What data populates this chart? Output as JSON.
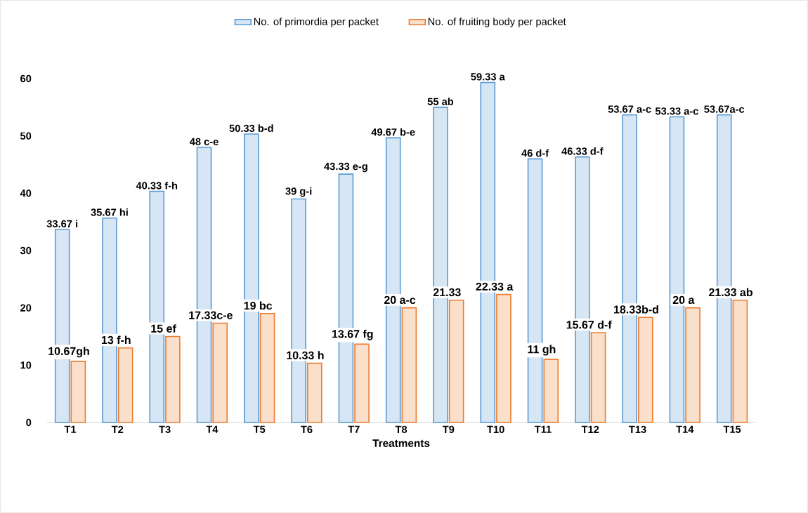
{
  "chart_data": {
    "type": "bar",
    "xlabel": "Treatments",
    "categories": [
      "T1",
      "T2",
      "T3",
      "T4",
      "T5",
      "T6",
      "T7",
      "T8",
      "T9",
      "T10",
      "T11",
      "T12",
      "T13",
      "T14",
      "T15"
    ],
    "series": [
      {
        "name": "No. of primordia per packet",
        "color": "#5b9bd5",
        "values": [
          33.67,
          35.67,
          40.33,
          48,
          50.33,
          39,
          43.33,
          49.67,
          55,
          59.33,
          46,
          46.33,
          53.67,
          53.33,
          53.67
        ],
        "value_labels": [
          "33.67 i",
          "35.67 hi",
          "40.33 f-h",
          "48 c-e",
          "50.33 b-d",
          "39 g-i",
          "43.33 e-g",
          "49.67 b-e",
          "55 ab",
          "59.33 a",
          "46 d-f",
          "46.33 d-f",
          "53.67 a-c",
          "53.33 a-c",
          "53.67a-c"
        ]
      },
      {
        "name": "No. of fruiting body per packet",
        "color": "#ed7d31",
        "values": [
          10.67,
          13,
          15,
          17.33,
          19,
          10.33,
          13.67,
          20,
          21.33,
          22.33,
          11,
          15.67,
          18.33,
          20,
          21.33
        ],
        "value_labels": [
          "10.67gh",
          "13 f-h",
          "15 ef",
          "17.33c-e",
          "19 bc",
          "10.33 h",
          "13.67 fg",
          "20 a-c",
          "21.33",
          "22.33 a",
          "11 gh",
          "15.67 d-f",
          "18.33b-d",
          "20 a",
          "21.33 ab"
        ]
      }
    ],
    "ylim": [
      0,
      60
    ],
    "yticks": [
      0,
      10,
      20,
      30,
      40,
      50,
      60
    ],
    "legend": "top"
  }
}
